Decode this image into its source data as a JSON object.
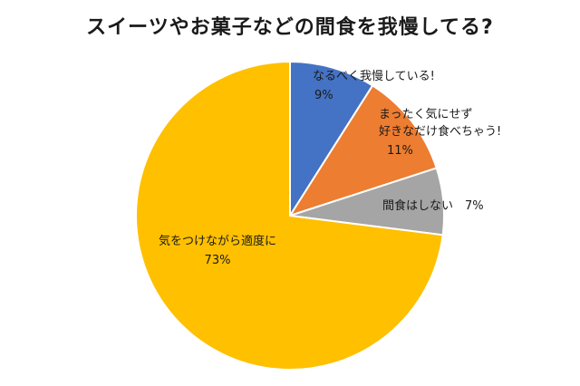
{
  "chart_data": {
    "type": "pie",
    "title": "スイーツやお菓子などの間食を我慢してる?",
    "slices": [
      {
        "lines": [
          "なるべく我慢している!"
        ],
        "pct_label": "9%",
        "value": 9,
        "color": "#4472C4"
      },
      {
        "lines": [
          "まったく気にせず",
          "好きなだけ食べちゃう!"
        ],
        "pct_label": "11%",
        "value": 11,
        "color": "#ED7D31"
      },
      {
        "lines": [],
        "inline_label": "間食はしない　7%",
        "value": 7,
        "color": "#A5A5A5"
      },
      {
        "lines": [
          "気をつけながら適度に"
        ],
        "pct_label": "73%",
        "value": 73,
        "color": "#FFC000"
      }
    ],
    "start_angle_deg": 0,
    "direction": "clockwise",
    "legend": "none"
  }
}
